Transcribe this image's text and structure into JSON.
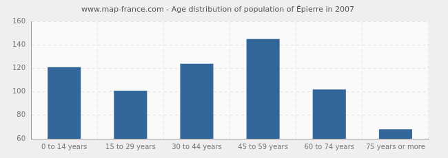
{
  "chart_data": {
    "type": "bar",
    "title": "www.map-france.com - Age distribution of population of Épierre in 2007",
    "categories": [
      "0 to 14 years",
      "15 to 29 years",
      "30 to 44 years",
      "45 to 59 years",
      "60 to 74 years",
      "75 years or more"
    ],
    "values": [
      121,
      101,
      124,
      145,
      102,
      68
    ],
    "color": "#336699",
    "ylim": [
      60,
      160
    ],
    "yticks": [
      60,
      80,
      100,
      120,
      140,
      160
    ],
    "grid": true
  }
}
